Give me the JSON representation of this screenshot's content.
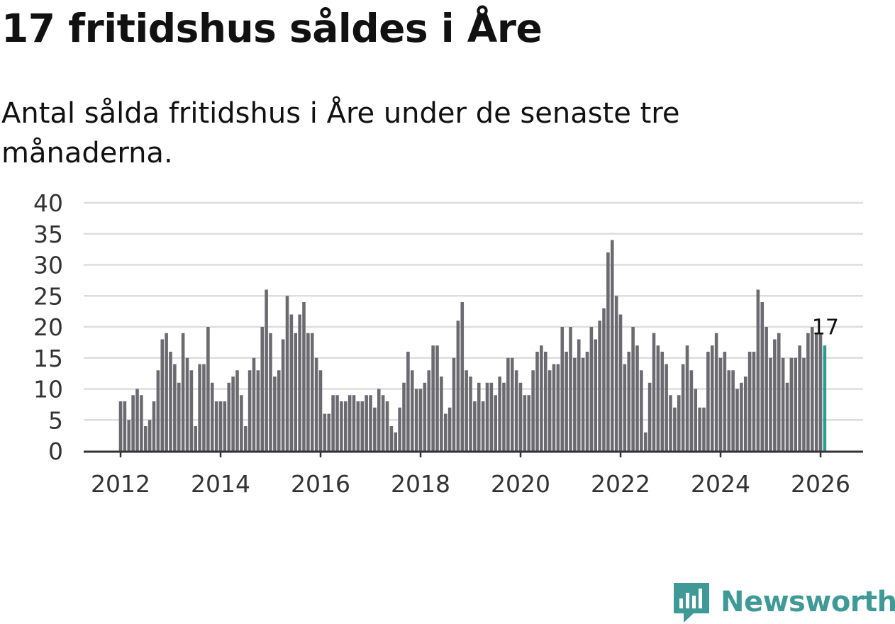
{
  "header": {
    "title": "17 fritidshus såldes i Åre",
    "subtitle": "Antal sålda fritidshus i Åre under de senaste tre månaderna."
  },
  "chart_data": {
    "type": "bar",
    "title": "17 fritidshus såldes i Åre",
    "subtitle": "Antal sålda fritidshus i Åre under de senaste tre månaderna.",
    "xlabel": "",
    "ylabel": "",
    "ylim": [
      0,
      40
    ],
    "yticks": [
      "0",
      "5",
      "10",
      "15",
      "20",
      "25",
      "30",
      "35",
      "40"
    ],
    "xticks": [
      "2012",
      "2014",
      "2016",
      "2018",
      "2020",
      "2022",
      "2024",
      "2026"
    ],
    "start": "2012-01",
    "end": "2026-02",
    "grid": true,
    "highlight_label": "17",
    "values": [
      8,
      8,
      5,
      9,
      10,
      9,
      4,
      5,
      8,
      13,
      18,
      19,
      16,
      14,
      11,
      19,
      15,
      13,
      4,
      14,
      14,
      20,
      11,
      8,
      8,
      8,
      11,
      12,
      13,
      9,
      4,
      13,
      15,
      13,
      20,
      26,
      19,
      12,
      13,
      18,
      25,
      22,
      19,
      22,
      24,
      19,
      19,
      15,
      13,
      6,
      6,
      9,
      9,
      8,
      8,
      9,
      9,
      8,
      8,
      9,
      9,
      7,
      10,
      9,
      8,
      4,
      3,
      7,
      11,
      16,
      13,
      10,
      10,
      11,
      13,
      17,
      17,
      12,
      6,
      7,
      15,
      21,
      24,
      13,
      12,
      8,
      11,
      8,
      11,
      11,
      9,
      12,
      11,
      15,
      15,
      13,
      11,
      9,
      9,
      13,
      16,
      17,
      16,
      13,
      14,
      14,
      20,
      16,
      20,
      15,
      18,
      15,
      16,
      20,
      18,
      21,
      23,
      32,
      34,
      25,
      22,
      14,
      16,
      20,
      17,
      13,
      3,
      11,
      19,
      17,
      16,
      14,
      9,
      7,
      9,
      14,
      17,
      13,
      10,
      7,
      7,
      16,
      17,
      19,
      15,
      16,
      13,
      13,
      10,
      11,
      12,
      16,
      16,
      26,
      24,
      20,
      15,
      18,
      19,
      15,
      11,
      15,
      15,
      17,
      15,
      19,
      20,
      19,
      19,
      17
    ],
    "colors": {
      "bar": "#6b6a70",
      "highlight": "#2a9d92",
      "grid": "#dddddd",
      "axis": "#333333"
    }
  },
  "branding": {
    "name": "Newsworthy",
    "icon": "newsworthy-logo-icon",
    "color": "#3f9a97"
  }
}
